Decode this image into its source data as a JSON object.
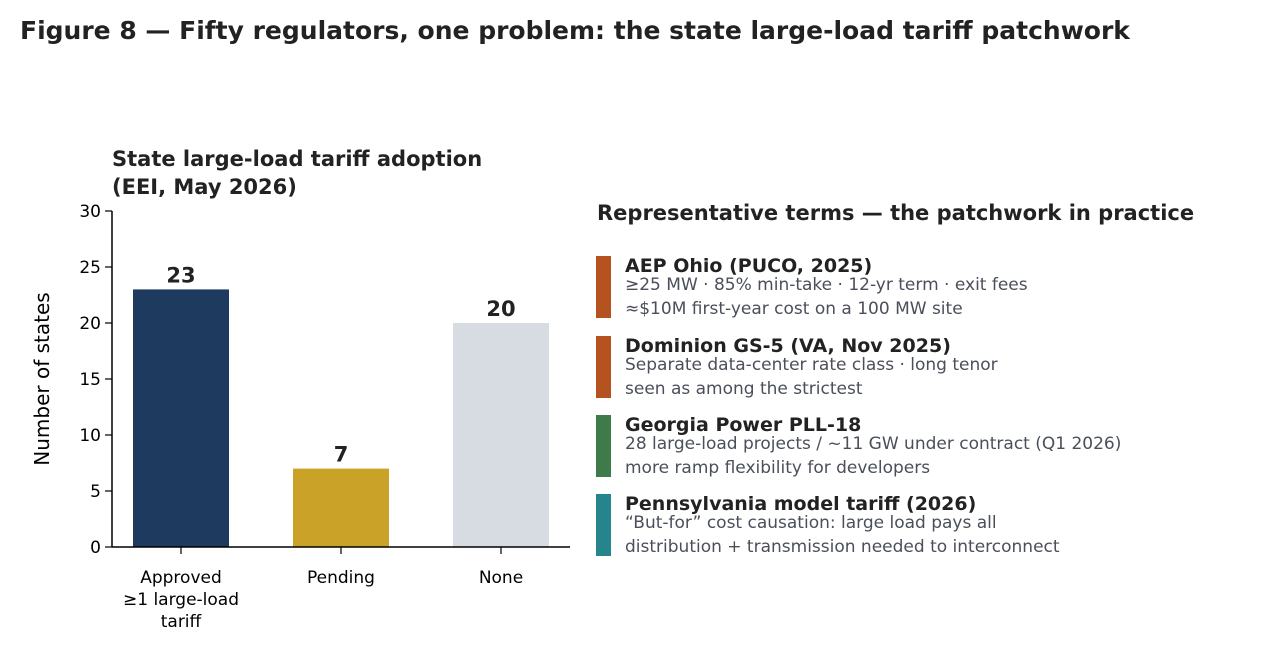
{
  "figure_title": "Figure 8 — Fifty regulators, one problem: the state large-load tariff patchwork",
  "chart_data": {
    "type": "bar",
    "title": "State large-load tariff adoption\n(EEI, May 2026)",
    "ylabel": "Number of states",
    "xlabel": "",
    "categories": [
      "Approved\n≥1 large-load\ntariff",
      "Pending",
      "None"
    ],
    "values": [
      23,
      7,
      20
    ],
    "data_labels": [
      "23",
      "7",
      "20"
    ],
    "colors": [
      "#1f3a5f",
      "#c9a227",
      "#d7dce3"
    ],
    "ylim": [
      0,
      30
    ],
    "yticks": [
      0,
      5,
      10,
      15,
      20,
      25,
      30
    ],
    "grid": false,
    "legend": "none"
  },
  "terms_panel": {
    "title": "Representative terms — the patchwork in practice",
    "items": [
      {
        "name": "AEP Ohio (PUCO, 2025)",
        "line1": "≥25 MW · 85% min-take · 12-yr term · exit fees",
        "line2": "≈$10M first-year cost on a 100 MW site",
        "color": "#b5521f"
      },
      {
        "name": "Dominion GS-5 (VA, Nov 2025)",
        "line1": "Separate data-center rate class · long tenor",
        "line2": "seen as among the strictest",
        "color": "#b5521f"
      },
      {
        "name": "Georgia Power PLL-18",
        "line1": "28 large-load projects / ~11 GW under contract (Q1 2026)",
        "line2": "more ramp flexibility for developers",
        "color": "#3f7a4a"
      },
      {
        "name": "Pennsylvania model tariff (2026)",
        "line1": "“But-for” cost causation: large load pays all",
        "line2": "distribution + transmission needed to interconnect",
        "color": "#26848c"
      }
    ]
  }
}
